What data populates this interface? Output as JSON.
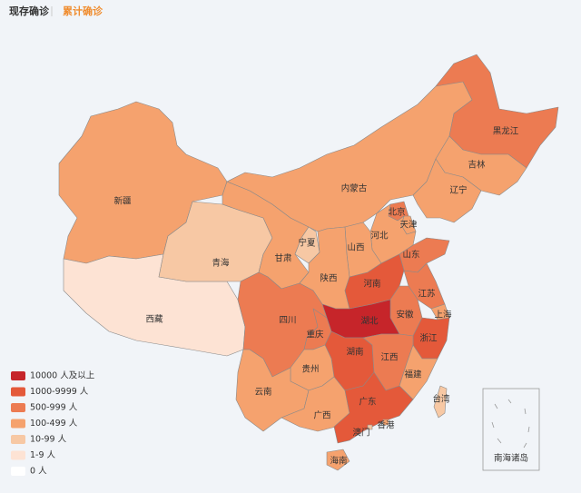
{
  "tabs": [
    {
      "label": "现存确诊",
      "color": "#333333"
    },
    {
      "label": "累计确诊",
      "color": "#f08c2e"
    }
  ],
  "legend": [
    {
      "label": "10000 人及以上",
      "color": "#c6252a"
    },
    {
      "label": "1000-9999 人",
      "color": "#e4593a"
    },
    {
      "label": "500-999 人",
      "color": "#ec7b52"
    },
    {
      "label": "100-499 人",
      "color": "#f5a26e"
    },
    {
      "label": "10-99 人",
      "color": "#f7c8a4"
    },
    {
      "label": "1-9 人",
      "color": "#fde3d4"
    },
    {
      "label": "0 人",
      "color": "#ffffff"
    }
  ],
  "provinces": [
    {
      "name": "新疆",
      "color": "#f5a26e"
    },
    {
      "name": "西藏",
      "color": "#fde3d4"
    },
    {
      "name": "青海",
      "color": "#f7c8a4"
    },
    {
      "name": "甘肃",
      "color": "#f5a26e"
    },
    {
      "name": "宁夏",
      "color": "#f7c8a4"
    },
    {
      "name": "内蒙古",
      "color": "#f5a26e"
    },
    {
      "name": "黑龙江",
      "color": "#ec7b52"
    },
    {
      "name": "吉林",
      "color": "#f5a26e"
    },
    {
      "name": "辽宁",
      "color": "#f5a26e"
    },
    {
      "name": "北京",
      "color": "#ec7b52"
    },
    {
      "name": "天津",
      "color": "#f5a26e"
    },
    {
      "name": "河北",
      "color": "#f5a26e"
    },
    {
      "name": "山西",
      "color": "#f5a26e"
    },
    {
      "name": "山东",
      "color": "#ec7b52"
    },
    {
      "name": "陕西",
      "color": "#f5a26e"
    },
    {
      "name": "河南",
      "color": "#e4593a"
    },
    {
      "name": "江苏",
      "color": "#ec7b52"
    },
    {
      "name": "安徽",
      "color": "#ec7b52"
    },
    {
      "name": "上海",
      "color": "#f5a26e"
    },
    {
      "name": "浙江",
      "color": "#e4593a"
    },
    {
      "name": "湖北",
      "color": "#c6252a"
    },
    {
      "name": "四川",
      "color": "#ec7b52"
    },
    {
      "name": "重庆",
      "color": "#ec7b52"
    },
    {
      "name": "湖南",
      "color": "#e4593a"
    },
    {
      "name": "江西",
      "color": "#ec7b52"
    },
    {
      "name": "福建",
      "color": "#f5a26e"
    },
    {
      "name": "贵州",
      "color": "#f5a26e"
    },
    {
      "name": "云南",
      "color": "#f5a26e"
    },
    {
      "name": "广西",
      "color": "#f5a26e"
    },
    {
      "name": "广东",
      "color": "#e4593a"
    },
    {
      "name": "海南",
      "color": "#f5a26e"
    },
    {
      "name": "台湾",
      "color": "#f7c8a4"
    },
    {
      "name": "香港",
      "color": "#f5a26e"
    },
    {
      "name": "澳门",
      "color": "#f7c8a4"
    }
  ],
  "inset_label": "南海诸岛"
}
